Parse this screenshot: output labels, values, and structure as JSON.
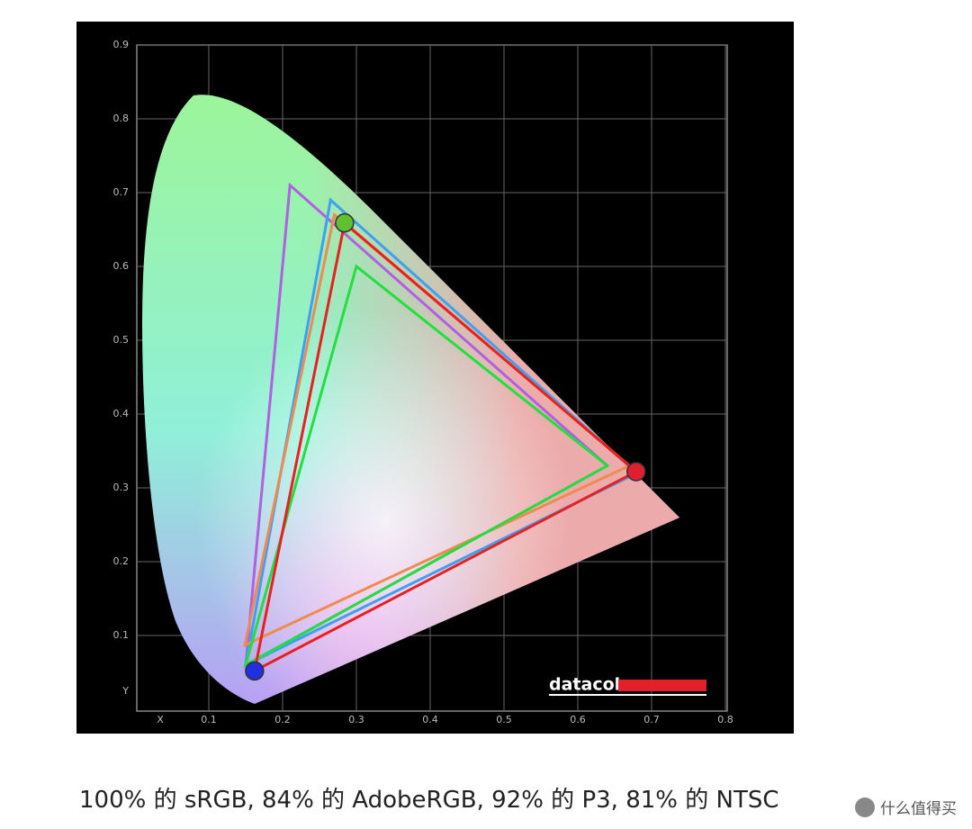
{
  "chart_data": {
    "type": "gamut",
    "x_label": "X",
    "y_label": "Y",
    "xlim": [
      0,
      0.8
    ],
    "ylim": [
      0,
      0.9
    ],
    "xticks": [
      0.1,
      0.2,
      0.3,
      0.4,
      0.5,
      0.6,
      0.7,
      0.8
    ],
    "yticks": [
      0.1,
      0.2,
      0.3,
      0.4,
      0.5,
      0.6,
      0.7,
      0.8,
      0.9
    ],
    "grid": true,
    "logo": "datacolor",
    "series": [
      {
        "color": "#b060e0",
        "x": [
          0.64,
          0.21,
          0.15
        ],
        "y": [
          0.33,
          0.71,
          0.06
        ]
      },
      {
        "color": "#3ea0f0",
        "x": [
          0.68,
          0.265,
          0.15
        ],
        "y": [
          0.32,
          0.69,
          0.06
        ]
      },
      {
        "color": "#f08a50",
        "x": [
          0.67,
          0.27,
          0.149
        ],
        "y": [
          0.33,
          0.67,
          0.087
        ]
      },
      {
        "color": "#20e040",
        "x": [
          0.64,
          0.3,
          0.15
        ],
        "y": [
          0.33,
          0.6,
          0.06
        ]
      },
      {
        "color": "#e82020",
        "x": [
          0.679,
          0.284,
          0.162
        ],
        "y": [
          0.322,
          0.659,
          0.052
        ],
        "markers": true
      }
    ]
  },
  "caption": "100% 的 sRGB, 84% 的 AdobeRGB, 92% 的 P3, 81% 的 NTSC",
  "watermark": "什么值得买"
}
